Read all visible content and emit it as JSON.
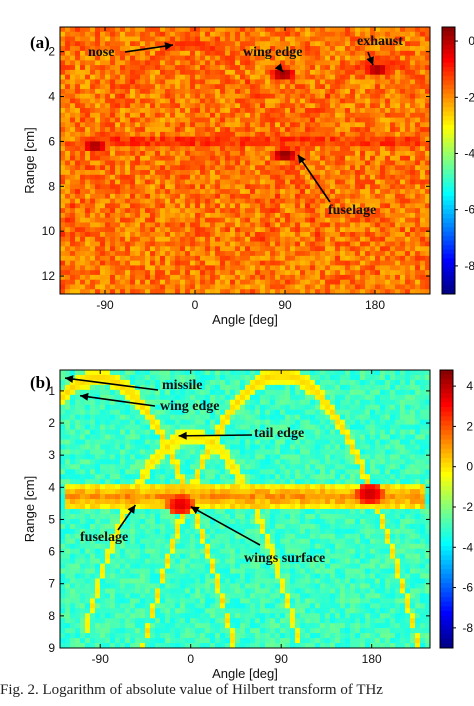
{
  "caption": "Fig. 2. Logarithm of absolute value of Hilbert transform of THz",
  "chart_data": [
    {
      "type": "heatmap",
      "panel_label": "(a)",
      "xlabel": "Angle [deg]",
      "ylabel": "Range [cm]",
      "xlim": [
        -135,
        235
      ],
      "ylim": [
        12.8,
        0.9
      ],
      "xticks": [
        -90,
        0,
        90,
        180
      ],
      "yticks": [
        2,
        4,
        6,
        8,
        10,
        12
      ],
      "colorbar": {
        "min": -9,
        "max": 0.5,
        "ticks": [
          0,
          -2,
          -4,
          -6,
          -8
        ]
      },
      "background_value": -1.8,
      "features": [
        {
          "kind": "arc",
          "center_x": -5,
          "peak_y": 1.6,
          "half_width": 105,
          "depth": 5.8,
          "value": -1.0
        },
        {
          "kind": "arc",
          "center_x": 185,
          "peak_y": 2.4,
          "half_width": 95,
          "depth": 5.2,
          "value": -1.0
        },
        {
          "kind": "band",
          "y": 6.0,
          "x_from": -115,
          "x_to": 225,
          "value": -0.8
        },
        {
          "kind": "spot",
          "x": -100,
          "y": 6.2,
          "value": 0.2
        },
        {
          "kind": "spot",
          "x": 90,
          "y": 6.6,
          "value": 0.4
        },
        {
          "kind": "spot",
          "x": 88,
          "y": 3.0,
          "value": 0.3
        },
        {
          "kind": "spot",
          "x": 182,
          "y": 2.8,
          "value": 0.2
        }
      ],
      "annotations": [
        {
          "text": "nose",
          "target": [
            -22,
            1.7
          ]
        },
        {
          "text": "wing edge",
          "target": [
            88,
            2.9
          ]
        },
        {
          "text": "exhaust",
          "target": [
            178,
            2.6
          ]
        },
        {
          "text": "fuselage",
          "target": [
            103,
            6.6
          ]
        }
      ]
    },
    {
      "type": "heatmap",
      "panel_label": "(b)",
      "xlabel": "Angle [deg]",
      "ylabel": "Range [cm]",
      "xlim": [
        -130,
        238
      ],
      "ylim": [
        9.0,
        0.35
      ],
      "xticks": [
        -90,
        0,
        90,
        180
      ],
      "yticks": [
        1,
        2,
        3,
        4,
        5,
        6,
        7,
        8,
        9
      ],
      "colorbar": {
        "min": -9,
        "max": 4.8,
        "ticks": [
          4,
          2,
          0,
          -2,
          -4,
          -6,
          -8
        ]
      },
      "background_value": -3.0,
      "features": [
        {
          "kind": "arc",
          "center_x": -92,
          "peak_y": 0.6,
          "half_width": 115,
          "depth": 6.0,
          "value": 0.2
        },
        {
          "kind": "arc",
          "center_x": 90,
          "peak_y": 0.5,
          "half_width": 120,
          "depth": 6.5,
          "value": 0.2
        },
        {
          "kind": "arc",
          "center_x": 0,
          "peak_y": 2.4,
          "half_width": 85,
          "depth": 4.0,
          "value": 0.0
        },
        {
          "kind": "band",
          "y": 4.3,
          "x_from": -125,
          "x_to": 235,
          "value": 1.2
        },
        {
          "kind": "spot",
          "x": -10,
          "y": 4.55,
          "value": 3.5
        },
        {
          "kind": "spot",
          "x": 178,
          "y": 4.2,
          "value": 3.8
        }
      ],
      "annotations": [
        {
          "text": "missile",
          "target": [
            -125,
            0.6
          ]
        },
        {
          "text": "wing edge",
          "target": [
            -110,
            1.15
          ]
        },
        {
          "text": "tail edge",
          "target": [
            -12,
            2.4
          ]
        },
        {
          "text": "fuselage",
          "target": [
            -55,
            4.55
          ]
        },
        {
          "text": "wings surface",
          "target": [
            0,
            4.6
          ]
        }
      ]
    }
  ]
}
